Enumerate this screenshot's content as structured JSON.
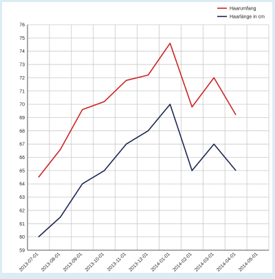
{
  "chart_data": {
    "type": "line",
    "x_categories": [
      "2013-07-01",
      "2013-08-01",
      "2013-09-01",
      "2013-10-01",
      "2013-11-01",
      "2013-12-01",
      "2014-01-01",
      "2014-02-01",
      "2014-03-01",
      "2014-04-01",
      "2014-05-01"
    ],
    "y_ticks": [
      59,
      60,
      61,
      62,
      63,
      64,
      65,
      66,
      67,
      68,
      69,
      70,
      71,
      72,
      73,
      74,
      75,
      76
    ],
    "ylim": [
      59,
      76
    ],
    "grid": true,
    "legend_position": "top-right",
    "series": [
      {
        "name": "Haarumfang",
        "color": "#cc2222",
        "points": [
          {
            "x": "2013-07-01",
            "y": 64.5
          },
          {
            "x": "2013-08-01",
            "y": 66.6
          },
          {
            "x": "2013-09-01",
            "y": 69.6
          },
          {
            "x": "2013-10-01",
            "y": 70.2
          },
          {
            "x": "2013-11-01",
            "y": 71.8
          },
          {
            "x": "2013-12-01",
            "y": 72.2
          },
          {
            "x": "2014-01-01",
            "y": 74.6
          },
          {
            "x": "2014-02-01",
            "y": 69.8
          },
          {
            "x": "2014-03-01",
            "y": 72.0
          },
          {
            "x": "2014-04-01",
            "y": 69.2
          }
        ]
      },
      {
        "name": "Haarlänge in cm",
        "color": "#1a2550",
        "points": [
          {
            "x": "2013-07-01",
            "y": 60.0
          },
          {
            "x": "2013-08-01",
            "y": 61.5
          },
          {
            "x": "2013-09-01",
            "y": 64.0
          },
          {
            "x": "2013-10-01",
            "y": 65.0
          },
          {
            "x": "2013-11-01",
            "y": 67.0
          },
          {
            "x": "2013-12-01",
            "y": 68.0
          },
          {
            "x": "2014-01-01",
            "y": 70.0
          },
          {
            "x": "2014-02-01",
            "y": 65.0
          },
          {
            "x": "2014-03-01",
            "y": 67.0
          },
          {
            "x": "2014-04-01",
            "y": 65.0
          }
        ]
      }
    ]
  }
}
